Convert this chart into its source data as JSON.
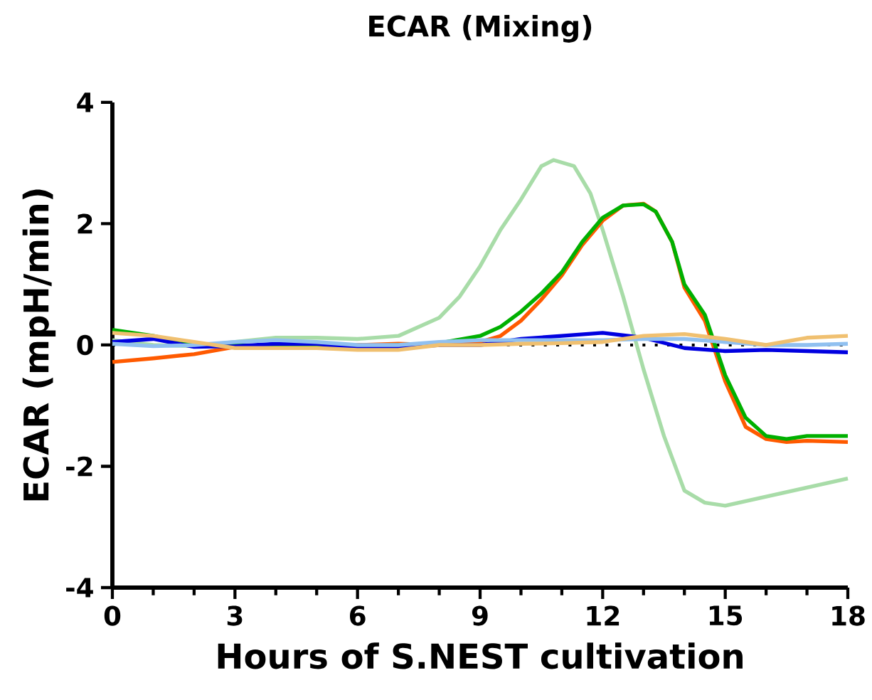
{
  "chart_data": {
    "type": "line",
    "title": "ECAR (Mixing)",
    "xlabel": "Hours of S.NEST cultivation",
    "ylabel": "ECAR (mpH/min)",
    "xlim": [
      0,
      18
    ],
    "ylim": [
      -4,
      4
    ],
    "xticks": [
      0,
      3,
      6,
      9,
      12,
      15,
      18
    ],
    "yticks": [
      -4,
      -2,
      0,
      2,
      4
    ],
    "grid": false,
    "marker": "none",
    "line_style": "solid",
    "ref_lines": [
      {
        "axis": "y",
        "value": 0,
        "color": "#000000",
        "line_style": "dotted"
      }
    ],
    "series": [
      {
        "color": "#a8dca8",
        "x": [
          0,
          1,
          2,
          3,
          4,
          5,
          6,
          7,
          7.5,
          8,
          8.5,
          9,
          9.5,
          10,
          10.5,
          10.8,
          11.3,
          11.7,
          12,
          12.5,
          13,
          13.5,
          14,
          14.5,
          15,
          16,
          17,
          18
        ],
        "values": [
          0.08,
          0.0,
          -0.02,
          0.05,
          0.12,
          0.12,
          0.1,
          0.15,
          0.3,
          0.45,
          0.8,
          1.3,
          1.9,
          2.4,
          2.95,
          3.05,
          2.95,
          2.5,
          1.9,
          0.8,
          -0.4,
          -1.5,
          -2.4,
          -2.6,
          -2.65,
          -2.5,
          -2.35,
          -2.2
        ]
      },
      {
        "color": "#ff5a00",
        "x": [
          0,
          1,
          2,
          3,
          4,
          5,
          6,
          7,
          8,
          9,
          9.5,
          10,
          10.5,
          11,
          11.5,
          12,
          12.5,
          13,
          13.3,
          13.7,
          14,
          14.5,
          15,
          15.5,
          16,
          16.5,
          17,
          18
        ],
        "values": [
          -0.28,
          -0.22,
          -0.15,
          -0.03,
          -0.05,
          -0.05,
          0.0,
          0.02,
          0.0,
          0.05,
          0.15,
          0.4,
          0.75,
          1.15,
          1.65,
          2.05,
          2.3,
          2.33,
          2.2,
          1.7,
          0.95,
          0.4,
          -0.6,
          -1.35,
          -1.55,
          -1.6,
          -1.58,
          -1.6
        ]
      },
      {
        "color": "#00b000",
        "x": [
          0,
          1,
          2,
          3,
          4,
          5,
          6,
          7,
          8,
          9,
          9.5,
          10,
          10.5,
          11,
          11.5,
          12,
          12.5,
          13,
          13.3,
          13.7,
          14,
          14.5,
          15,
          15.5,
          16,
          16.5,
          17,
          18
        ],
        "values": [
          0.25,
          0.15,
          0.0,
          0.0,
          -0.02,
          -0.03,
          -0.02,
          0.0,
          0.03,
          0.15,
          0.3,
          0.55,
          0.85,
          1.2,
          1.7,
          2.1,
          2.3,
          2.32,
          2.2,
          1.7,
          1.0,
          0.5,
          -0.5,
          -1.2,
          -1.5,
          -1.55,
          -1.5,
          -1.5
        ]
      },
      {
        "color": "#0000e0",
        "x": [
          0,
          1,
          2,
          3,
          4,
          5,
          6,
          7,
          8,
          9,
          10,
          11,
          12,
          13,
          14,
          15,
          16,
          17,
          18
        ],
        "values": [
          0.05,
          0.1,
          -0.03,
          -0.02,
          0.02,
          0.02,
          -0.05,
          -0.05,
          0.0,
          0.0,
          0.1,
          0.15,
          0.2,
          0.12,
          -0.05,
          -0.1,
          -0.08,
          -0.1,
          -0.12
        ]
      },
      {
        "color": "#90c0f0",
        "x": [
          0,
          1,
          2,
          3,
          4,
          5,
          6,
          7,
          8,
          9,
          10,
          11,
          12,
          13,
          14,
          15,
          16,
          17,
          18
        ],
        "values": [
          0.02,
          -0.02,
          0.0,
          0.05,
          0.08,
          0.05,
          0.0,
          0.0,
          0.05,
          0.08,
          0.08,
          0.08,
          0.08,
          0.1,
          0.1,
          0.05,
          0.0,
          0.0,
          0.02
        ]
      },
      {
        "color": "#f0c070",
        "x": [
          0,
          1,
          2,
          3,
          4,
          5,
          6,
          7,
          8,
          9,
          10,
          11,
          12,
          13,
          14,
          15,
          16,
          17,
          18
        ],
        "values": [
          0.2,
          0.15,
          0.05,
          -0.05,
          -0.05,
          -0.05,
          -0.08,
          -0.08,
          0.0,
          0.0,
          0.02,
          0.03,
          0.05,
          0.15,
          0.18,
          0.1,
          0.0,
          0.12,
          0.15
        ]
      }
    ]
  }
}
